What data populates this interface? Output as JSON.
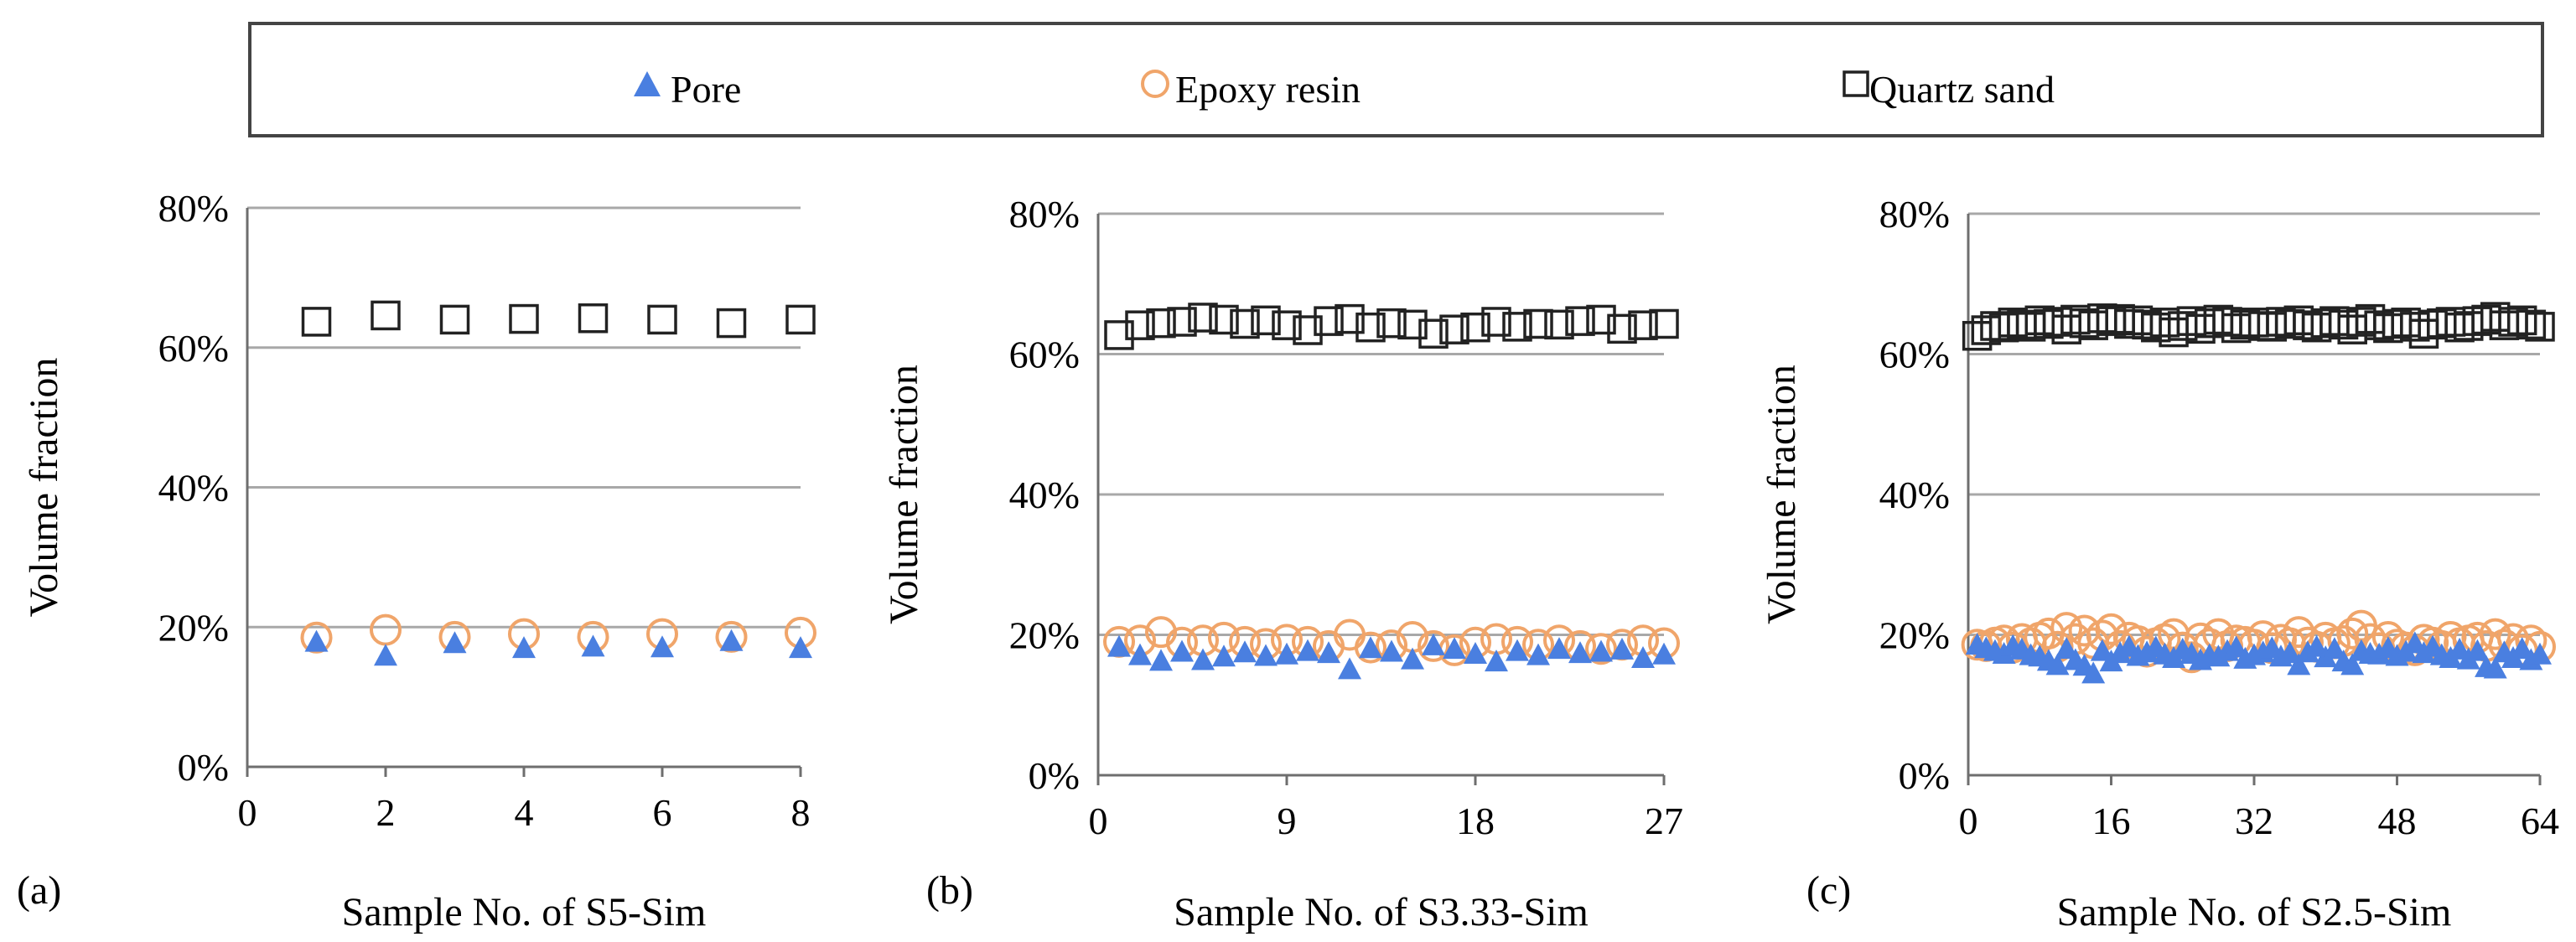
{
  "legend": {
    "items": [
      {
        "label": "Pore",
        "marker": "triangle-icon",
        "color": "#4a7fe0"
      },
      {
        "label": "Epoxy resin",
        "marker": "circle-icon",
        "color": "#f0a56a"
      },
      {
        "label": "Quartz sand",
        "marker": "square-icon",
        "color": "#222222"
      }
    ]
  },
  "chart_data": [
    {
      "type": "scatter",
      "panel_label": "(a)",
      "xlabel": "Sample No. of S5-Sim",
      "ylabel": "Volume fraction",
      "xlim": [
        0,
        8
      ],
      "xticks": [
        0,
        2,
        4,
        6,
        8
      ],
      "ylim": [
        0,
        80
      ],
      "yticks": [
        0,
        20,
        40,
        60,
        80
      ],
      "ytick_labels": [
        "0%",
        "20%",
        "40%",
        "60%",
        "80%"
      ],
      "grid": "horizontal",
      "series": [
        {
          "name": "Pore",
          "x": [
            1,
            2,
            3,
            4,
            5,
            6,
            7,
            8
          ],
          "values": [
            17.8,
            15.8,
            17.6,
            16.9,
            17.1,
            17.0,
            17.9,
            16.9
          ]
        },
        {
          "name": "Epoxy resin",
          "x": [
            1,
            2,
            3,
            4,
            5,
            6,
            7,
            8
          ],
          "values": [
            18.5,
            19.6,
            18.6,
            19.0,
            18.6,
            19.0,
            18.6,
            19.2
          ]
        },
        {
          "name": "Quartz sand",
          "x": [
            1,
            2,
            3,
            4,
            5,
            6,
            7,
            8
          ],
          "values": [
            63.7,
            64.6,
            64.0,
            64.1,
            64.2,
            64.0,
            63.5,
            64.0
          ]
        }
      ]
    },
    {
      "type": "scatter",
      "panel_label": "(b)",
      "xlabel": "Sample No. of S3.33-Sim",
      "ylabel": "Volume fraction",
      "xlim": [
        0,
        27
      ],
      "xticks": [
        0,
        9,
        18,
        27
      ],
      "ylim": [
        0,
        80
      ],
      "yticks": [
        0,
        20,
        40,
        60,
        80
      ],
      "ytick_labels": [
        "0%",
        "20%",
        "40%",
        "60%",
        "80%"
      ],
      "grid": "horizontal",
      "series": [
        {
          "name": "Pore",
          "x": [
            1,
            2,
            3,
            4,
            5,
            6,
            7,
            8,
            9,
            10,
            11,
            12,
            13,
            14,
            15,
            16,
            17,
            18,
            19,
            20,
            21,
            22,
            23,
            24,
            25,
            26,
            27
          ],
          "values": [
            18.2,
            17.0,
            16.2,
            17.5,
            16.3,
            16.8,
            17.4,
            16.9,
            17.1,
            17.6,
            17.3,
            15.0,
            18.0,
            17.5,
            16.4,
            18.4,
            17.9,
            17.2,
            16.1,
            17.6,
            17.0,
            17.9,
            17.3,
            17.5,
            17.8,
            16.6,
            17.1
          ]
        },
        {
          "name": "Epoxy resin",
          "x": [
            1,
            2,
            3,
            4,
            5,
            6,
            7,
            8,
            9,
            10,
            11,
            12,
            13,
            14,
            15,
            16,
            17,
            18,
            19,
            20,
            21,
            22,
            23,
            24,
            25,
            26,
            27
          ],
          "values": [
            19.0,
            19.2,
            20.4,
            18.9,
            19.2,
            19.6,
            19.0,
            18.7,
            19.3,
            19.0,
            18.4,
            20.0,
            18.2,
            18.5,
            19.7,
            18.4,
            17.8,
            18.9,
            19.4,
            19.0,
            18.6,
            19.2,
            18.4,
            18.0,
            18.6,
            19.2,
            18.8
          ]
        },
        {
          "name": "Quartz sand",
          "x": [
            1,
            2,
            3,
            4,
            5,
            6,
            7,
            8,
            9,
            10,
            11,
            12,
            13,
            14,
            15,
            16,
            17,
            18,
            19,
            20,
            21,
            22,
            23,
            24,
            25,
            26,
            27
          ],
          "values": [
            62.7,
            64.1,
            64.4,
            64.6,
            65.2,
            64.9,
            64.3,
            64.8,
            64.1,
            63.4,
            64.7,
            65.0,
            63.8,
            64.4,
            64.2,
            62.9,
            63.5,
            63.8,
            64.6,
            63.9,
            64.3,
            64.2,
            64.7,
            64.9,
            63.6,
            64.1,
            64.3
          ]
        }
      ]
    },
    {
      "type": "scatter",
      "panel_label": "(c)",
      "xlabel": "Sample No. of S2.5-Sim",
      "ylabel": "Volume fraction",
      "xlim": [
        0,
        64
      ],
      "xticks": [
        0,
        16,
        32,
        48,
        64
      ],
      "ylim": [
        0,
        80
      ],
      "yticks": [
        0,
        20,
        40,
        60,
        80
      ],
      "ytick_labels": [
        "0%",
        "20%",
        "40%",
        "60%",
        "80%"
      ],
      "grid": "horizontal",
      "series": [
        {
          "name": "Pore",
          "x": [
            1,
            2,
            3,
            4,
            5,
            6,
            7,
            8,
            9,
            10,
            11,
            12,
            13,
            14,
            15,
            16,
            17,
            18,
            19,
            20,
            21,
            22,
            23,
            24,
            25,
            26,
            27,
            28,
            29,
            30,
            31,
            32,
            33,
            34,
            35,
            36,
            37,
            38,
            39,
            40,
            41,
            42,
            43,
            44,
            45,
            46,
            47,
            48,
            49,
            50,
            51,
            52,
            53,
            54,
            55,
            56,
            57,
            58,
            59,
            60,
            61,
            62,
            63,
            64
          ],
          "values": [
            18.5,
            18.0,
            17.6,
            17.2,
            18.3,
            17.8,
            17.0,
            16.8,
            16.2,
            15.6,
            17.9,
            16.3,
            15.5,
            14.4,
            17.6,
            16.1,
            17.3,
            18.2,
            16.9,
            17.4,
            18.1,
            17.1,
            16.6,
            17.8,
            17.2,
            16.3,
            17.0,
            16.8,
            17.6,
            18.1,
            16.5,
            17.0,
            17.4,
            18.0,
            16.8,
            17.3,
            15.6,
            17.4,
            18.2,
            16.7,
            17.9,
            16.1,
            15.6,
            17.6,
            17.2,
            17.1,
            18.0,
            16.9,
            17.5,
            18.7,
            17.3,
            18.2,
            17.0,
            16.6,
            17.8,
            16.4,
            17.6,
            15.3,
            15.1,
            17.4,
            16.6,
            17.9,
            16.3,
            17.1
          ]
        },
        {
          "name": "Epoxy resin",
          "x": [
            1,
            2,
            3,
            4,
            5,
            6,
            7,
            8,
            9,
            10,
            11,
            12,
            13,
            14,
            15,
            16,
            17,
            18,
            19,
            20,
            21,
            22,
            23,
            24,
            25,
            26,
            27,
            28,
            29,
            30,
            31,
            32,
            33,
            34,
            35,
            36,
            37,
            38,
            39,
            40,
            41,
            42,
            43,
            44,
            45,
            46,
            47,
            48,
            49,
            50,
            51,
            52,
            53,
            54,
            55,
            56,
            57,
            58,
            59,
            60,
            61,
            62,
            63,
            64
          ],
          "values": [
            18.6,
            18.4,
            18.9,
            19.2,
            18.2,
            19.4,
            18.8,
            19.6,
            20.2,
            18.3,
            21.0,
            19.4,
            20.6,
            18.8,
            19.9,
            20.8,
            18.4,
            19.6,
            19.1,
            17.6,
            18.8,
            19.4,
            20.1,
            18.2,
            16.8,
            19.5,
            18.7,
            20.1,
            18.4,
            19.2,
            19.0,
            18.6,
            19.8,
            18.1,
            19.3,
            18.8,
            20.4,
            18.9,
            18.3,
            19.6,
            18.8,
            19.1,
            20.2,
            21.3,
            19.4,
            18.1,
            19.7,
            18.6,
            18.2,
            17.8,
            19.3,
            18.9,
            18.4,
            19.7,
            18.8,
            19.2,
            19.6,
            18.4,
            20.1,
            18.6,
            19.4,
            17.8,
            19.2,
            18.3
          ]
        },
        {
          "name": "Quartz sand",
          "x": [
            1,
            2,
            3,
            4,
            5,
            6,
            7,
            8,
            9,
            10,
            11,
            12,
            13,
            14,
            15,
            16,
            17,
            18,
            19,
            20,
            21,
            22,
            23,
            24,
            25,
            26,
            27,
            28,
            29,
            30,
            31,
            32,
            33,
            34,
            35,
            36,
            37,
            38,
            39,
            40,
            41,
            42,
            43,
            44,
            45,
            46,
            47,
            48,
            49,
            50,
            51,
            52,
            53,
            54,
            55,
            56,
            57,
            58,
            59,
            60,
            61,
            62,
            63,
            64
          ],
          "values": [
            62.6,
            63.4,
            64.0,
            63.8,
            64.5,
            64.2,
            63.9,
            64.8,
            64.3,
            64.6,
            63.5,
            64.9,
            64.4,
            64.1,
            65.1,
            64.7,
            65.0,
            64.3,
            64.8,
            64.2,
            63.8,
            64.5,
            63.1,
            64.0,
            64.7,
            63.6,
            64.4,
            64.9,
            64.6,
            63.7,
            64.2,
            64.5,
            64.0,
            63.9,
            64.6,
            64.3,
            64.8,
            64.1,
            63.8,
            64.4,
            64.7,
            64.2,
            63.5,
            64.6,
            65.0,
            64.1,
            63.7,
            64.3,
            64.5,
            63.9,
            62.9,
            64.2,
            64.4,
            64.6,
            63.8,
            64.0,
            64.7,
            64.9,
            65.3,
            64.1,
            64.6,
            64.8,
            64.2,
            63.9
          ]
        }
      ]
    }
  ]
}
